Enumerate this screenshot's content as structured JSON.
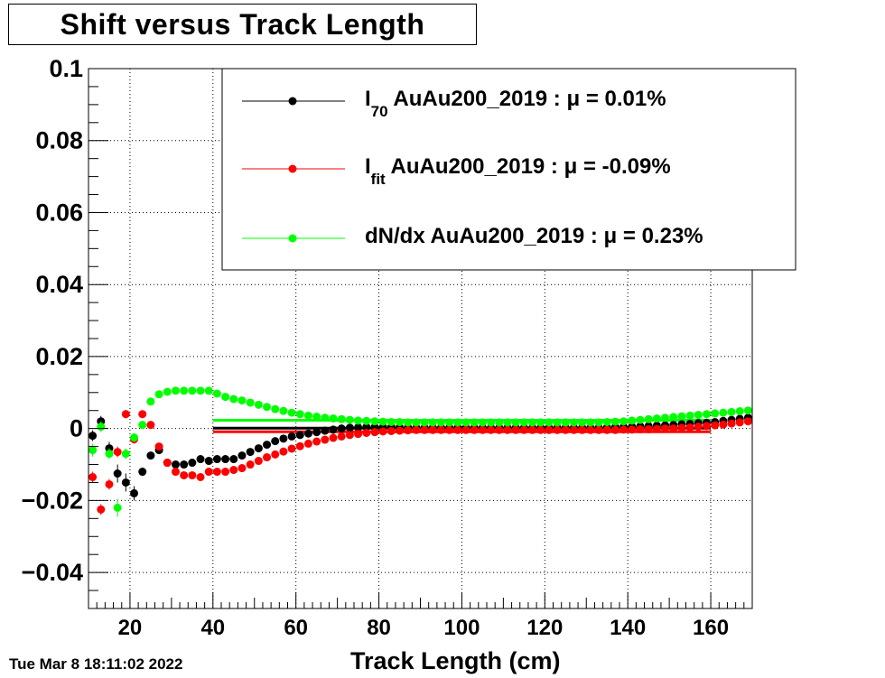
{
  "title": "Shift versus Track Length",
  "timestamp": "Tue Mar  8 18:11:02 2022",
  "chart_data": {
    "type": "scatter",
    "title": "Shift versus Track Length",
    "xlabel": "Track Length (cm)",
    "ylabel": "",
    "xlim": [
      10,
      170
    ],
    "ylim": [
      -0.05,
      0.1
    ],
    "xticks": [
      20,
      40,
      60,
      80,
      100,
      120,
      140,
      160
    ],
    "yticks": [
      -0.04,
      -0.02,
      0,
      0.02,
      0.04,
      0.06,
      0.08,
      0.1
    ],
    "ytick_labels": [
      "−0.04",
      "−0.02",
      "0",
      "0.02",
      "0.04",
      "0.06",
      "0.08",
      "0.1"
    ],
    "grid": true,
    "legend_position": "top-right",
    "legend": [
      {
        "main": "I",
        "sub": "70",
        "rest": " AuAu200_2019 : μ =  0.01%",
        "color": "#000000"
      },
      {
        "main": "I",
        "sub": "fit",
        "rest": " AuAu200_2019 : μ = -0.09%",
        "color": "#ff0000"
      },
      {
        "main": "dN/dx",
        "sub": "",
        "rest": " AuAu200_2019 : μ =  0.23%",
        "color": "#00ff00"
      }
    ],
    "series": [
      {
        "color": "#000000",
        "mean": 0.0001,
        "mean_range": [
          40,
          160
        ],
        "x": [
          11,
          13,
          15,
          17,
          19,
          21,
          23,
          25,
          27,
          29,
          31,
          33,
          35,
          37,
          39,
          41,
          43,
          45,
          47,
          49,
          51,
          53,
          55,
          57,
          59,
          61,
          63,
          65,
          67,
          69,
          71,
          73,
          75,
          77,
          79,
          81,
          83,
          85,
          87,
          89,
          91,
          93,
          95,
          97,
          99,
          101,
          103,
          105,
          107,
          109,
          111,
          113,
          115,
          117,
          119,
          121,
          123,
          125,
          127,
          129,
          131,
          133,
          135,
          137,
          139,
          141,
          143,
          145,
          147,
          149,
          151,
          153,
          155,
          157,
          159,
          161,
          163,
          165,
          167,
          169
        ],
        "y": [
          -0.002,
          0.002,
          -0.0055,
          -0.0125,
          -0.015,
          -0.018,
          -0.012,
          -0.0075,
          -0.006,
          -0.0095,
          -0.01,
          -0.01,
          -0.0095,
          -0.0085,
          -0.009,
          -0.0085,
          -0.0085,
          -0.0085,
          -0.0075,
          -0.0065,
          -0.0055,
          -0.0045,
          -0.0035,
          -0.0028,
          -0.0022,
          -0.0018,
          -0.0014,
          -0.001,
          -0.0006,
          -0.0003,
          0,
          0.0002,
          0.0003,
          0.0004,
          0.0004,
          0.0004,
          0.0004,
          0.0003,
          0.0003,
          0.0002,
          0.0002,
          0.0002,
          0.0002,
          0.0002,
          0.0002,
          0.0002,
          0.0002,
          0.0002,
          0.0002,
          0.0002,
          0.0002,
          0.0002,
          0.0002,
          0.0002,
          0.0002,
          0.0002,
          0.0002,
          0.0002,
          0.0002,
          0.0002,
          0.0002,
          0.0002,
          0.0003,
          0.0004,
          0.0004,
          0.0005,
          0.0006,
          0.0007,
          0.0008,
          0.0009,
          0.001,
          0.0012,
          0.0013,
          0.0015,
          0.0016,
          0.0018,
          0.0021,
          0.0024,
          0.0027,
          0.003
        ],
        "err": [
          0.0015,
          0.0015,
          0.0018,
          0.0025,
          0.0025,
          0.002,
          0.0012,
          0.0008,
          0.0006,
          0.0005,
          0.0005,
          0.0004,
          0.0004,
          0.0004,
          0.0004,
          0.0003,
          0.0003,
          0.0003,
          0.0003,
          0.0003,
          0.0003,
          0.0003,
          0.0003,
          0.0003,
          0.0003,
          0.0003,
          0.0003,
          0.0003,
          0.0003,
          0.0003,
          0.0003,
          0.0003,
          0.0003,
          0.0003,
          0.0003,
          0.0003,
          0.0003,
          0.0003,
          0.0003,
          0.0003,
          0.0003,
          0.0003,
          0.0003,
          0.0003,
          0.0003,
          0.0003,
          0.0003,
          0.0003,
          0.0003,
          0.0003,
          0.0003,
          0.0003,
          0.0003,
          0.0003,
          0.0003,
          0.0003,
          0.0003,
          0.0003,
          0.0003,
          0.0003,
          0.0003,
          0.0003,
          0.0003,
          0.0003,
          0.0003,
          0.0003,
          0.0003,
          0.0003,
          0.0003,
          0.0003,
          0.0003,
          0.0003,
          0.0003,
          0.0003,
          0.0003,
          0.0003,
          0.0003,
          0.0003,
          0.0003,
          0.0003
        ]
      },
      {
        "color": "#ff0000",
        "mean": -0.0009,
        "mean_range": [
          40,
          160
        ],
        "x": [
          11,
          13,
          15,
          17,
          19,
          21,
          23,
          25,
          27,
          29,
          31,
          33,
          35,
          37,
          39,
          41,
          43,
          45,
          47,
          49,
          51,
          53,
          55,
          57,
          59,
          61,
          63,
          65,
          67,
          69,
          71,
          73,
          75,
          77,
          79,
          81,
          83,
          85,
          87,
          89,
          91,
          93,
          95,
          97,
          99,
          101,
          103,
          105,
          107,
          109,
          111,
          113,
          115,
          117,
          119,
          121,
          123,
          125,
          127,
          129,
          131,
          133,
          135,
          137,
          139,
          141,
          143,
          145,
          147,
          149,
          151,
          153,
          155,
          157,
          159,
          161,
          163,
          165,
          167,
          169
        ],
        "y": [
          -0.0135,
          -0.0225,
          -0.0155,
          -0.0065,
          0.004,
          -0.003,
          0.004,
          0.001,
          -0.005,
          -0.0095,
          -0.012,
          -0.013,
          -0.013,
          -0.0135,
          -0.012,
          -0.012,
          -0.012,
          -0.0115,
          -0.011,
          -0.01,
          -0.009,
          -0.008,
          -0.0072,
          -0.0064,
          -0.0056,
          -0.0049,
          -0.0042,
          -0.0036,
          -0.0031,
          -0.0026,
          -0.0022,
          -0.0018,
          -0.0015,
          -0.0012,
          -0.001,
          -0.0008,
          -0.0007,
          -0.0006,
          -0.0005,
          -0.0004,
          -0.0004,
          -0.0004,
          -0.0004,
          -0.0004,
          -0.0004,
          -0.0004,
          -0.0004,
          -0.0004,
          -0.0004,
          -0.0004,
          -0.0004,
          -0.0004,
          -0.0004,
          -0.0004,
          -0.0004,
          -0.0004,
          -0.0004,
          -0.0004,
          -0.0004,
          -0.0004,
          -0.0004,
          -0.0004,
          -0.0004,
          -0.0004,
          -0.0003,
          -0.0003,
          -0.0002,
          -0.0002,
          -0.0001,
          0,
          0,
          0.0002,
          0.0003,
          0.0005,
          0.0007,
          0.0009,
          0.0011,
          0.0014,
          0.0017,
          0.002
        ],
        "err": [
          0.0015,
          0.0015,
          0.0015,
          0.0015,
          0.0012,
          0.0012,
          0.001,
          0.0008,
          0.0006,
          0.0005,
          0.0005,
          0.0004,
          0.0004,
          0.0004,
          0.0004,
          0.0003,
          0.0003,
          0.0003,
          0.0003,
          0.0003,
          0.0003,
          0.0003,
          0.0003,
          0.0003,
          0.0003,
          0.0003,
          0.0003,
          0.0003,
          0.0003,
          0.0003,
          0.0003,
          0.0003,
          0.0003,
          0.0003,
          0.0003,
          0.0003,
          0.0003,
          0.0003,
          0.0003,
          0.0003,
          0.0003,
          0.0003,
          0.0003,
          0.0003,
          0.0003,
          0.0003,
          0.0003,
          0.0003,
          0.0003,
          0.0003,
          0.0003,
          0.0003,
          0.0003,
          0.0003,
          0.0003,
          0.0003,
          0.0003,
          0.0003,
          0.0003,
          0.0003,
          0.0003,
          0.0003,
          0.0003,
          0.0003,
          0.0003,
          0.0003,
          0.0003,
          0.0003,
          0.0003,
          0.0003,
          0.0003,
          0.0003,
          0.0003,
          0.0003,
          0.0003,
          0.0003,
          0.0003,
          0.0003,
          0.0003,
          0.0003
        ]
      },
      {
        "color": "#00ff00",
        "mean": 0.0023,
        "mean_range": [
          40,
          160
        ],
        "x": [
          11,
          13,
          15,
          17,
          19,
          21,
          23,
          25,
          27,
          29,
          31,
          33,
          35,
          37,
          39,
          41,
          43,
          45,
          47,
          49,
          51,
          53,
          55,
          57,
          59,
          61,
          63,
          65,
          67,
          69,
          71,
          73,
          75,
          77,
          79,
          81,
          83,
          85,
          87,
          89,
          91,
          93,
          95,
          97,
          99,
          101,
          103,
          105,
          107,
          109,
          111,
          113,
          115,
          117,
          119,
          121,
          123,
          125,
          127,
          129,
          131,
          133,
          135,
          137,
          139,
          141,
          143,
          145,
          147,
          149,
          151,
          153,
          155,
          157,
          159,
          161,
          163,
          165,
          167,
          169
        ],
        "y": [
          -0.006,
          0.0005,
          -0.007,
          -0.022,
          -0.007,
          -0.0025,
          0.001,
          0.0075,
          0.0095,
          0.0102,
          0.0105,
          0.0105,
          0.0105,
          0.0105,
          0.0105,
          0.0097,
          0.0088,
          0.0082,
          0.0078,
          0.0072,
          0.0066,
          0.006,
          0.0054,
          0.0049,
          0.0044,
          0.004,
          0.0036,
          0.0033,
          0.003,
          0.0028,
          0.0026,
          0.0024,
          0.0022,
          0.0021,
          0.002,
          0.0019,
          0.0018,
          0.0018,
          0.0017,
          0.0017,
          0.0017,
          0.0017,
          0.0017,
          0.0017,
          0.0017,
          0.0017,
          0.0017,
          0.0017,
          0.0017,
          0.0017,
          0.0017,
          0.0017,
          0.0017,
          0.0017,
          0.0017,
          0.0017,
          0.0017,
          0.0017,
          0.0017,
          0.0017,
          0.0017,
          0.0017,
          0.0018,
          0.0019,
          0.002,
          0.0022,
          0.0024,
          0.0026,
          0.0028,
          0.003,
          0.0032,
          0.0034,
          0.0036,
          0.0038,
          0.004,
          0.0042,
          0.0044,
          0.0046,
          0.0048,
          0.005
        ],
        "err": [
          0.0018,
          0.0015,
          0.0015,
          0.0025,
          0.0015,
          0.0012,
          0.001,
          0.0008,
          0.0006,
          0.0005,
          0.0005,
          0.0004,
          0.0004,
          0.0004,
          0.0004,
          0.0003,
          0.0003,
          0.0003,
          0.0003,
          0.0003,
          0.0003,
          0.0003,
          0.0003,
          0.0003,
          0.0003,
          0.0003,
          0.0003,
          0.0003,
          0.0003,
          0.0003,
          0.0003,
          0.0003,
          0.0003,
          0.0003,
          0.0003,
          0.0003,
          0.0003,
          0.0003,
          0.0003,
          0.0003,
          0.0003,
          0.0003,
          0.0003,
          0.0003,
          0.0003,
          0.0003,
          0.0003,
          0.0003,
          0.0003,
          0.0003,
          0.0003,
          0.0003,
          0.0003,
          0.0003,
          0.0003,
          0.0003,
          0.0003,
          0.0003,
          0.0003,
          0.0003,
          0.0003,
          0.0003,
          0.0003,
          0.0003,
          0.0003,
          0.0003,
          0.0003,
          0.0003,
          0.0003,
          0.0003,
          0.0003,
          0.0003,
          0.0003,
          0.0003,
          0.0003,
          0.0003,
          0.0003,
          0.0003,
          0.0003,
          0.0003
        ]
      }
    ]
  }
}
